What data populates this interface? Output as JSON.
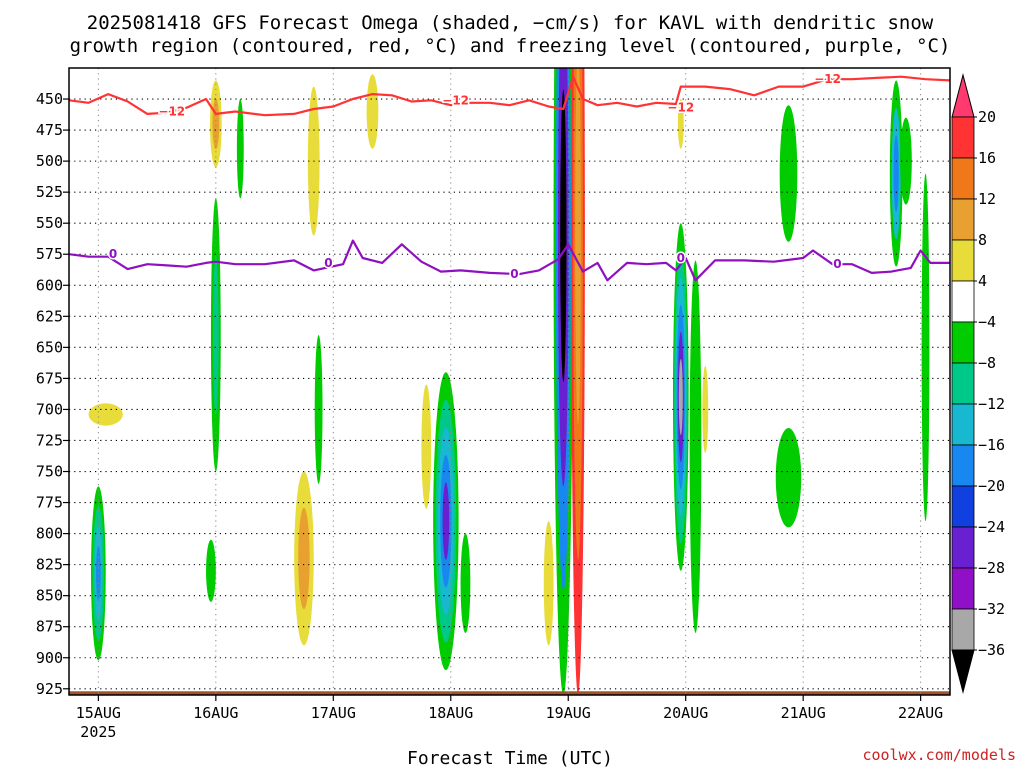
{
  "chart_data": {
    "type": "heatmap",
    "title_lines": [
      "2025081418 GFS Forecast Omega (shaded, −cm/s) for KAVL with dendritic snow",
      "growth region (contoured, red, °C) and freezing level (contoured, purple, °C)"
    ],
    "xlabel": "Forecast Time (UTC)",
    "credit": "coolwx.com/models",
    "y_ticks": [
      450,
      475,
      500,
      525,
      550,
      575,
      600,
      625,
      650,
      675,
      700,
      725,
      750,
      775,
      800,
      825,
      850,
      875,
      900,
      925
    ],
    "ylim_hpa": [
      425,
      930
    ],
    "x_ticks": [
      {
        "label": "15AUG",
        "sub": "2025",
        "hour": 6
      },
      {
        "label": "16AUG",
        "hour": 30
      },
      {
        "label": "17AUG",
        "hour": 54
      },
      {
        "label": "18AUG",
        "hour": 78
      },
      {
        "label": "19AUG",
        "hour": 102
      },
      {
        "label": "20AUG",
        "hour": 126
      },
      {
        "label": "21AUG",
        "hour": 150
      },
      {
        "label": "22AUG",
        "hour": 174
      }
    ],
    "xlim_hours": [
      0,
      180
    ],
    "grid": "dotted",
    "colorbar": {
      "labels": [
        "20",
        "16",
        "12",
        "8",
        "4",
        "−4",
        "−8",
        "−12",
        "−16",
        "−20",
        "−24",
        "−28",
        "−32",
        "−36"
      ],
      "bins": [
        "#ff3a6e",
        "#ff3333",
        "#f07818",
        "#e8a030",
        "#e8dc3a",
        "#ffffff",
        "#00cc00",
        "#00c888",
        "#18b8d0",
        "#1888f0",
        "#1040e0",
        "#6820d0",
        "#9010c8",
        "#a8a8a8",
        "#000000"
      ]
    },
    "contours": {
      "dgz_label": "−12",
      "dgz_color": "#ff3333",
      "freezing_label": "0",
      "freezing_color": "#9010c0",
      "dgz_minus12_hpa": [
        [
          0,
          451
        ],
        [
          4,
          453
        ],
        [
          8,
          446
        ],
        [
          12,
          452
        ],
        [
          16,
          462
        ],
        [
          20,
          461
        ],
        [
          24,
          457
        ],
        [
          28,
          450
        ],
        [
          30,
          462
        ],
        [
          34,
          460
        ],
        [
          40,
          463
        ],
        [
          46,
          462
        ],
        [
          50,
          458
        ],
        [
          54,
          456
        ],
        [
          58,
          450
        ],
        [
          62,
          446
        ],
        [
          66,
          447
        ],
        [
          70,
          452
        ],
        [
          74,
          451
        ],
        [
          78,
          455
        ],
        [
          82,
          453
        ],
        [
          86,
          453
        ],
        [
          90,
          455
        ],
        [
          94,
          451
        ],
        [
          98,
          456
        ],
        [
          101,
          458
        ],
        [
          103,
          432
        ],
        [
          105,
          450
        ],
        [
          108,
          455
        ],
        [
          112,
          453
        ],
        [
          116,
          456
        ],
        [
          120,
          453
        ],
        [
          124,
          454
        ],
        [
          125,
          440
        ],
        [
          130,
          440
        ],
        [
          135,
          442
        ],
        [
          140,
          447
        ],
        [
          145,
          440
        ],
        [
          150,
          440
        ],
        [
          155,
          434
        ],
        [
          160,
          434
        ],
        [
          165,
          433
        ],
        [
          170,
          432
        ],
        [
          175,
          434
        ],
        [
          180,
          435
        ]
      ],
      "freezing_hpa": [
        [
          0,
          575
        ],
        [
          4,
          577
        ],
        [
          8,
          577
        ],
        [
          12,
          587
        ],
        [
          16,
          583
        ],
        [
          20,
          584
        ],
        [
          24,
          585
        ],
        [
          28,
          582
        ],
        [
          30,
          581
        ],
        [
          34,
          583
        ],
        [
          40,
          583
        ],
        [
          46,
          580
        ],
        [
          50,
          588
        ],
        [
          56,
          583
        ],
        [
          58,
          564
        ],
        [
          60,
          578
        ],
        [
          64,
          582
        ],
        [
          68,
          567
        ],
        [
          72,
          581
        ],
        [
          76,
          589
        ],
        [
          80,
          588
        ],
        [
          86,
          590
        ],
        [
          92,
          591
        ],
        [
          96,
          588
        ],
        [
          100,
          579
        ],
        [
          102,
          567
        ],
        [
          105,
          589
        ],
        [
          108,
          582
        ],
        [
          110,
          596
        ],
        [
          114,
          582
        ],
        [
          118,
          583
        ],
        [
          122,
          582
        ],
        [
          124,
          588
        ],
        [
          126,
          578
        ],
        [
          128,
          596
        ],
        [
          132,
          580
        ],
        [
          138,
          580
        ],
        [
          144,
          581
        ],
        [
          150,
          578
        ],
        [
          152,
          572
        ],
        [
          156,
          583
        ],
        [
          160,
          583
        ],
        [
          164,
          590
        ],
        [
          168,
          589
        ],
        [
          172,
          586
        ],
        [
          174,
          572
        ],
        [
          176,
          582
        ],
        [
          180,
          582
        ]
      ]
    },
    "omega_areas": [
      {
        "h": 3.3,
        "cx": 6,
        "cy": 832,
        "rx": 1.5,
        "ry": 70,
        "colors": [
          "#00cc00",
          "#00c888",
          "#18b8d0",
          "#1888f0"
        ]
      },
      {
        "h": 3.3,
        "cx": 7.5,
        "cy": 704,
        "rx": 3.5,
        "ry": 9,
        "colors": [
          "#e8dc3a"
        ]
      },
      {
        "h": 3.3,
        "cx": 30,
        "cy": 470,
        "rx": 1.2,
        "ry": 35,
        "colors": [
          "#e8dc3a",
          "#e8a030"
        ]
      },
      {
        "h": 3.3,
        "cx": 30,
        "cy": 640,
        "rx": 1.0,
        "ry": 110,
        "colors": [
          "#00cc00",
          "#00c888"
        ]
      },
      {
        "h": 3.3,
        "cx": 29,
        "cy": 830,
        "rx": 1.0,
        "ry": 25,
        "colors": [
          "#00cc00"
        ]
      },
      {
        "h": 3.3,
        "cx": 35,
        "cy": 490,
        "rx": 0.7,
        "ry": 40,
        "colors": [
          "#00cc00"
        ]
      },
      {
        "h": 3.3,
        "cx": 48,
        "cy": 820,
        "rx": 2.0,
        "ry": 70,
        "colors": [
          "#e8dc3a",
          "#e8a030"
        ]
      },
      {
        "h": 3.3,
        "cx": 50,
        "cy": 500,
        "rx": 1.2,
        "ry": 60,
        "colors": [
          "#e8dc3a"
        ]
      },
      {
        "h": 3.3,
        "cx": 51,
        "cy": 700,
        "rx": 0.8,
        "ry": 60,
        "colors": [
          "#00cc00"
        ]
      },
      {
        "h": 3.3,
        "cx": 62,
        "cy": 460,
        "rx": 1.2,
        "ry": 30,
        "colors": [
          "#e8dc3a"
        ]
      },
      {
        "h": 3.3,
        "cx": 77,
        "cy": 790,
        "rx": 2.6,
        "ry": 120,
        "colors": [
          "#00cc00",
          "#00c888",
          "#18b8d0",
          "#1888f0",
          "#6820d0"
        ]
      },
      {
        "h": 3.3,
        "cx": 81,
        "cy": 840,
        "rx": 1.0,
        "ry": 40,
        "colors": [
          "#00cc00"
        ]
      },
      {
        "h": 3.3,
        "cx": 73,
        "cy": 730,
        "rx": 1.0,
        "ry": 50,
        "colors": [
          "#e8dc3a"
        ]
      },
      {
        "h": 3.3,
        "cx": 101,
        "cy": 560,
        "rx": 2.0,
        "ry": 370,
        "colors": [
          "#00cc00",
          "#1888f0",
          "#6820d0",
          "#000000"
        ]
      },
      {
        "h": 3.3,
        "cx": 104,
        "cy": 560,
        "rx": 1.4,
        "ry": 370,
        "colors": [
          "#ff3333",
          "#f07818",
          "#e8a030"
        ]
      },
      {
        "h": 3.3,
        "cx": 98,
        "cy": 840,
        "rx": 1.0,
        "ry": 50,
        "colors": [
          "#e8dc3a"
        ]
      },
      {
        "h": 3.3,
        "cx": 125,
        "cy": 690,
        "rx": 1.6,
        "ry": 140,
        "colors": [
          "#00cc00",
          "#00c888",
          "#18b8d0",
          "#1888f0",
          "#6820d0",
          "#a8a8a8"
        ]
      },
      {
        "h": 3.3,
        "cx": 128,
        "cy": 730,
        "rx": 1.2,
        "ry": 150,
        "colors": [
          "#00cc00"
        ]
      },
      {
        "h": 3.3,
        "cx": 130,
        "cy": 700,
        "rx": 0.6,
        "ry": 35,
        "colors": [
          "#e8dc3a"
        ]
      },
      {
        "h": 3.3,
        "cx": 125,
        "cy": 470,
        "rx": 0.6,
        "ry": 20,
        "colors": [
          "#e8dc3a"
        ]
      },
      {
        "h": 3.3,
        "cx": 147,
        "cy": 510,
        "rx": 1.8,
        "ry": 55,
        "colors": [
          "#00cc00"
        ]
      },
      {
        "h": 3.3,
        "cx": 147,
        "cy": 755,
        "rx": 2.6,
        "ry": 40,
        "colors": [
          "#00cc00"
        ]
      },
      {
        "h": 3.3,
        "cx": 169,
        "cy": 510,
        "rx": 1.3,
        "ry": 75,
        "colors": [
          "#00cc00",
          "#18b8d0",
          "#1888f0"
        ]
      },
      {
        "h": 3.3,
        "cx": 171,
        "cy": 500,
        "rx": 1.2,
        "ry": 35,
        "colors": [
          "#00cc00"
        ]
      },
      {
        "h": 3.3,
        "cx": 175,
        "cy": 650,
        "rx": 0.8,
        "ry": 140,
        "colors": [
          "#00cc00"
        ]
      }
    ]
  }
}
